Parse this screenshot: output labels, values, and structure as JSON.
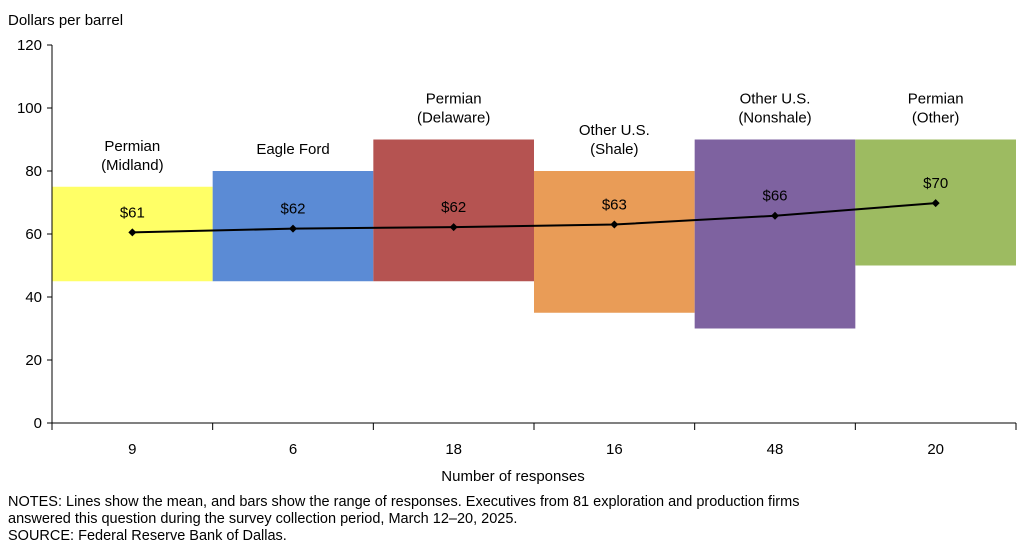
{
  "chart_data": {
    "type": "bar",
    "ylabel": "Dollars per barrel",
    "xlabel": "Number of responses",
    "ylim": [
      0,
      120
    ],
    "yticks": [
      0,
      20,
      40,
      60,
      80,
      100,
      120
    ],
    "categories": [
      {
        "lines": [
          "Permian",
          "(Midland)"
        ],
        "responses": "9",
        "range": [
          45,
          75
        ],
        "mean": 60.5,
        "mean_label": "$61",
        "color": "#FFFF66"
      },
      {
        "lines": [
          "Eagle Ford"
        ],
        "responses": "6",
        "range": [
          45,
          80
        ],
        "mean": 61.7,
        "mean_label": "$62",
        "color": "#5B8BD5"
      },
      {
        "lines": [
          "Permian",
          "(Delaware)"
        ],
        "responses": "18",
        "range": [
          45,
          90
        ],
        "mean": 62.2,
        "mean_label": "$62",
        "color": "#B55351"
      },
      {
        "lines": [
          "Other U.S.",
          "(Shale)"
        ],
        "responses": "16",
        "range": [
          35,
          80
        ],
        "mean": 63,
        "mean_label": "$63",
        "color": "#E99C57"
      },
      {
        "lines": [
          "Other U.S.",
          "(Nonshale)"
        ],
        "responses": "48",
        "range": [
          30,
          90
        ],
        "mean": 65.8,
        "mean_label": "$66",
        "color": "#7E62A0"
      },
      {
        "lines": [
          "Permian",
          "(Other)"
        ],
        "responses": "20",
        "range": [
          50,
          90
        ],
        "mean": 69.8,
        "mean_label": "$70",
        "color": "#9DBB61"
      }
    ],
    "line_color": "#000000"
  },
  "notes": {
    "line1": "NOTES: Lines show the mean, and bars show the range of responses. Executives from 81 exploration and production firms",
    "line2": "answered this question during the survey collection period, March 12–20, 2025.",
    "line3": "SOURCE: Federal Reserve Bank of Dallas."
  }
}
